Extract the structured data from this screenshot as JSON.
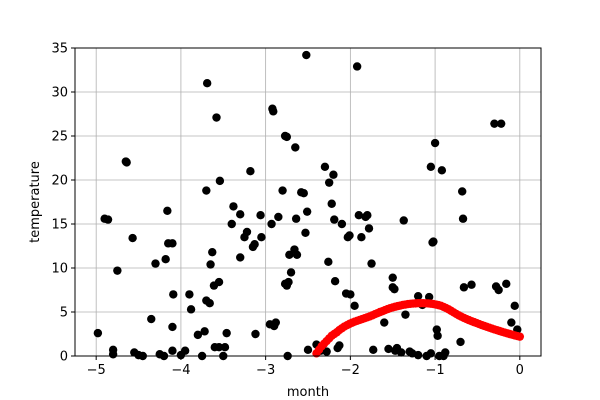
{
  "chart_data": {
    "type": "scatter",
    "xlabel": "month",
    "ylabel": "temperature",
    "xlim": [
      -5.25,
      0.25
    ],
    "ylim": [
      0,
      35
    ],
    "x_ticks": [
      -5,
      -4,
      -3,
      -2,
      -1,
      0
    ],
    "y_ticks": [
      0,
      5,
      10,
      15,
      20,
      25,
      30,
      35
    ],
    "grid": true,
    "series": [
      {
        "color": "#000000",
        "points": [
          [
            -4.98,
            2.6
          ],
          [
            -4.9,
            15.6
          ],
          [
            -4.86,
            15.5
          ],
          [
            -4.8,
            0.7
          ],
          [
            -4.8,
            0.2
          ],
          [
            -4.75,
            9.7
          ],
          [
            -4.65,
            22.1
          ],
          [
            -4.64,
            22.0
          ],
          [
            -4.57,
            13.4
          ],
          [
            -4.55,
            0.4
          ],
          [
            -4.5,
            0.1
          ],
          [
            -4.45,
            0.0
          ],
          [
            -4.35,
            4.2
          ],
          [
            -4.3,
            10.5
          ],
          [
            -4.25,
            0.2
          ],
          [
            -4.2,
            0.0
          ],
          [
            -4.18,
            11.0
          ],
          [
            -4.16,
            16.5
          ],
          [
            -4.15,
            12.8
          ],
          [
            -4.1,
            12.8
          ],
          [
            -4.1,
            3.3
          ],
          [
            -4.1,
            0.6
          ],
          [
            -4.09,
            7.0
          ],
          [
            -4.0,
            0.1
          ],
          [
            -3.95,
            0.6
          ],
          [
            -3.9,
            7.0
          ],
          [
            -3.88,
            5.3
          ],
          [
            -3.8,
            2.4
          ],
          [
            -3.75,
            0.0
          ],
          [
            -3.72,
            2.8
          ],
          [
            -3.7,
            6.3
          ],
          [
            -3.7,
            18.8
          ],
          [
            -3.69,
            31.0
          ],
          [
            -3.66,
            6.0
          ],
          [
            -3.65,
            10.4
          ],
          [
            -3.63,
            11.8
          ],
          [
            -3.61,
            8.0
          ],
          [
            -3.6,
            1.0
          ],
          [
            -3.58,
            27.1
          ],
          [
            -3.55,
            1.0
          ],
          [
            -3.55,
            8.4
          ],
          [
            -3.54,
            19.9
          ],
          [
            -3.5,
            0.0
          ],
          [
            -3.48,
            1.0
          ],
          [
            -3.46,
            2.6
          ],
          [
            -3.4,
            15.0
          ],
          [
            -3.38,
            17.0
          ],
          [
            -3.3,
            16.1
          ],
          [
            -3.3,
            11.2
          ],
          [
            -3.25,
            13.5
          ],
          [
            -3.22,
            14.1
          ],
          [
            -3.18,
            21.0
          ],
          [
            -3.15,
            12.4
          ],
          [
            -3.13,
            12.7
          ],
          [
            -3.12,
            2.5
          ],
          [
            -3.06,
            16.0
          ],
          [
            -3.05,
            13.5
          ],
          [
            -2.95,
            3.6
          ],
          [
            -2.93,
            15.0
          ],
          [
            -2.92,
            28.1
          ],
          [
            -2.91,
            27.8
          ],
          [
            -2.9,
            3.4
          ],
          [
            -2.88,
            3.8
          ],
          [
            -2.85,
            15.8
          ],
          [
            -2.8,
            18.8
          ],
          [
            -2.77,
            25.0
          ],
          [
            -2.75,
            24.9
          ],
          [
            -2.77,
            8.2
          ],
          [
            -2.75,
            8.0
          ],
          [
            -2.74,
            0.0
          ],
          [
            -2.73,
            8.4
          ],
          [
            -2.72,
            11.5
          ],
          [
            -2.7,
            9.5
          ],
          [
            -2.66,
            12.1
          ],
          [
            -2.65,
            23.7
          ],
          [
            -2.64,
            15.6
          ],
          [
            -2.63,
            11.5
          ],
          [
            -2.58,
            18.6
          ],
          [
            -2.55,
            18.5
          ],
          [
            -2.53,
            14.0
          ],
          [
            -2.52,
            34.2
          ],
          [
            -2.51,
            16.4
          ],
          [
            -2.5,
            0.7
          ],
          [
            -2.4,
            1.3
          ],
          [
            -2.35,
            0.6
          ],
          [
            -2.3,
            21.5
          ],
          [
            -2.28,
            0.5
          ],
          [
            -2.26,
            10.7
          ],
          [
            -2.25,
            19.7
          ],
          [
            -2.22,
            17.3
          ],
          [
            -2.2,
            20.6
          ],
          [
            -2.19,
            15.5
          ],
          [
            -2.18,
            8.5
          ],
          [
            -2.15,
            0.9
          ],
          [
            -2.13,
            1.2
          ],
          [
            -2.1,
            15.0
          ],
          [
            -2.05,
            7.1
          ],
          [
            -2.03,
            13.5
          ],
          [
            -2.01,
            13.7
          ],
          [
            -2.0,
            7.0
          ],
          [
            -1.95,
            5.7
          ],
          [
            -1.92,
            32.9
          ],
          [
            -1.9,
            16.0
          ],
          [
            -1.87,
            13.5
          ],
          [
            -1.82,
            15.8
          ],
          [
            -1.8,
            16.0
          ],
          [
            -1.78,
            14.5
          ],
          [
            -1.75,
            10.5
          ],
          [
            -1.73,
            0.7
          ],
          [
            -1.6,
            3.8
          ],
          [
            -1.55,
            0.8
          ],
          [
            -1.5,
            7.8
          ],
          [
            -1.5,
            8.9
          ],
          [
            -1.48,
            7.6
          ],
          [
            -1.47,
            0.6
          ],
          [
            -1.45,
            0.9
          ],
          [
            -1.4,
            0.4
          ],
          [
            -1.37,
            15.4
          ],
          [
            -1.35,
            4.7
          ],
          [
            -1.3,
            0.5
          ],
          [
            -1.27,
            0.3
          ],
          [
            -1.2,
            6.8
          ],
          [
            -1.2,
            0.1
          ],
          [
            -1.15,
            5.8
          ],
          [
            -1.1,
            0.0
          ],
          [
            -1.07,
            6.7
          ],
          [
            -1.05,
            0.3
          ],
          [
            -1.05,
            21.5
          ],
          [
            -1.03,
            12.9
          ],
          [
            -1.02,
            13.0
          ],
          [
            -1.0,
            24.2
          ],
          [
            -0.98,
            3.0
          ],
          [
            -0.97,
            2.3
          ],
          [
            -0.95,
            0.0
          ],
          [
            -0.92,
            21.1
          ],
          [
            -0.9,
            0.0
          ],
          [
            -0.88,
            0.4
          ],
          [
            -0.7,
            1.6
          ],
          [
            -0.68,
            18.7
          ],
          [
            -0.67,
            15.6
          ],
          [
            -0.66,
            7.8
          ],
          [
            -0.57,
            8.1
          ],
          [
            -0.3,
            26.4
          ],
          [
            -0.28,
            7.9
          ],
          [
            -0.25,
            7.5
          ],
          [
            -0.22,
            26.4
          ],
          [
            -0.16,
            8.2
          ],
          [
            -0.1,
            3.8
          ],
          [
            -0.06,
            5.7
          ],
          [
            -0.03,
            3.0
          ]
        ]
      },
      {
        "color": "#ff0000",
        "points": [
          [
            -2.4,
            0.3
          ],
          [
            -2.37,
            0.7
          ],
          [
            -2.34,
            1.1
          ],
          [
            -2.31,
            1.4
          ],
          [
            -2.28,
            1.7
          ],
          [
            -2.25,
            2.0
          ],
          [
            -2.22,
            2.3
          ],
          [
            -2.19,
            2.5
          ],
          [
            -2.16,
            2.7
          ],
          [
            -2.13,
            2.95
          ],
          [
            -2.1,
            3.15
          ],
          [
            -2.07,
            3.35
          ],
          [
            -2.04,
            3.5
          ],
          [
            -2.01,
            3.65
          ],
          [
            -1.98,
            3.78
          ],
          [
            -1.95,
            3.9
          ],
          [
            -1.92,
            4.0
          ],
          [
            -1.89,
            4.1
          ],
          [
            -1.86,
            4.2
          ],
          [
            -1.83,
            4.3
          ],
          [
            -1.8,
            4.4
          ],
          [
            -1.77,
            4.5
          ],
          [
            -1.74,
            4.62
          ],
          [
            -1.71,
            4.75
          ],
          [
            -1.68,
            4.87
          ],
          [
            -1.65,
            5.0
          ],
          [
            -1.62,
            5.1
          ],
          [
            -1.59,
            5.22
          ],
          [
            -1.56,
            5.33
          ],
          [
            -1.53,
            5.43
          ],
          [
            -1.5,
            5.52
          ],
          [
            -1.47,
            5.6
          ],
          [
            -1.44,
            5.67
          ],
          [
            -1.41,
            5.73
          ],
          [
            -1.38,
            5.8
          ],
          [
            -1.35,
            5.85
          ],
          [
            -1.32,
            5.9
          ],
          [
            -1.29,
            5.93
          ],
          [
            -1.26,
            5.96
          ],
          [
            -1.23,
            5.98
          ],
          [
            -1.2,
            6.0
          ],
          [
            -1.17,
            6.0
          ],
          [
            -1.14,
            6.0
          ],
          [
            -1.11,
            5.99
          ],
          [
            -1.08,
            5.97
          ],
          [
            -1.05,
            5.94
          ],
          [
            -1.02,
            5.9
          ],
          [
            -0.99,
            5.85
          ],
          [
            -0.96,
            5.78
          ],
          [
            -0.93,
            5.7
          ],
          [
            -0.9,
            5.58
          ],
          [
            -0.87,
            5.45
          ],
          [
            -0.84,
            5.3
          ],
          [
            -0.81,
            5.13
          ],
          [
            -0.78,
            4.95
          ],
          [
            -0.75,
            4.78
          ],
          [
            -0.72,
            4.62
          ],
          [
            -0.69,
            4.47
          ],
          [
            -0.66,
            4.33
          ],
          [
            -0.63,
            4.2
          ],
          [
            -0.6,
            4.08
          ],
          [
            -0.57,
            3.96
          ],
          [
            -0.54,
            3.85
          ],
          [
            -0.51,
            3.74
          ],
          [
            -0.48,
            3.63
          ],
          [
            -0.45,
            3.52
          ],
          [
            -0.42,
            3.42
          ],
          [
            -0.39,
            3.32
          ],
          [
            -0.36,
            3.22
          ],
          [
            -0.33,
            3.12
          ],
          [
            -0.3,
            3.02
          ],
          [
            -0.27,
            2.93
          ],
          [
            -0.24,
            2.84
          ],
          [
            -0.21,
            2.75
          ],
          [
            -0.18,
            2.66
          ],
          [
            -0.15,
            2.58
          ],
          [
            -0.12,
            2.5
          ],
          [
            -0.09,
            2.42
          ],
          [
            -0.06,
            2.34
          ],
          [
            -0.03,
            2.27
          ],
          [
            0.0,
            2.2
          ]
        ]
      }
    ]
  }
}
